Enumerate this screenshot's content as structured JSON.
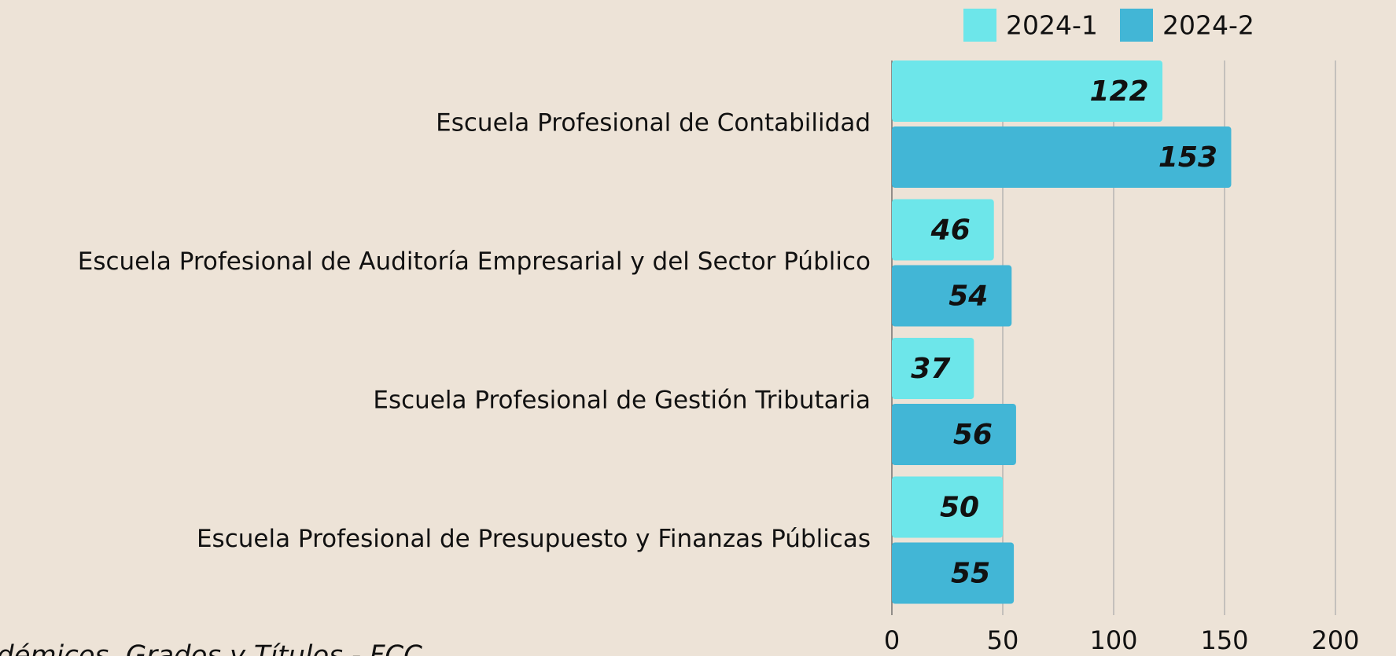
{
  "chart_data": {
    "type": "hbar",
    "categories": [
      "Escuela Profesional de Contabilidad",
      "Escuela Profesional de Auditoría Empresarial y del Sector Público",
      "Escuela Profesional de Gestión Tributaria",
      "Escuela Profesional de Presupuesto y Finanzas Públicas"
    ],
    "series": [
      {
        "name": "2024-1",
        "color": "#6de6ea",
        "values": [
          122,
          46,
          37,
          50
        ]
      },
      {
        "name": "2024-2",
        "color": "#42b6d6",
        "values": [
          153,
          54,
          56,
          55
        ]
      }
    ],
    "xlim": [
      0,
      200
    ],
    "xticks": [
      0,
      50,
      100,
      150,
      200
    ],
    "grid": true,
    "legend": "top-right",
    "source": "démicos, Grados y Títulos - FCC"
  }
}
